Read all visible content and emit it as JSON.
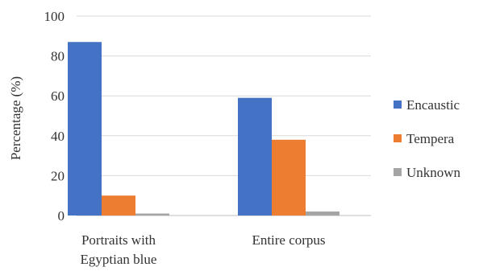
{
  "chart_data": {
    "type": "bar",
    "categories": [
      [
        "Portraits with",
        "Egyptian blue"
      ],
      [
        "Entire corpus"
      ]
    ],
    "series": [
      {
        "name": "Encaustic",
        "values": [
          87,
          59
        ],
        "color": "#4472C4"
      },
      {
        "name": "Tempera",
        "values": [
          10,
          38
        ],
        "color": "#ED7D31"
      },
      {
        "name": "Unknown",
        "values": [
          1,
          2
        ],
        "color": "#A5A5A5"
      }
    ],
    "xlabel": "",
    "ylabel": "Percentage (%)",
    "ylim": [
      0,
      100
    ],
    "yticks": [
      0,
      20,
      40,
      60,
      80,
      100
    ],
    "grid": true,
    "legend": "right"
  }
}
